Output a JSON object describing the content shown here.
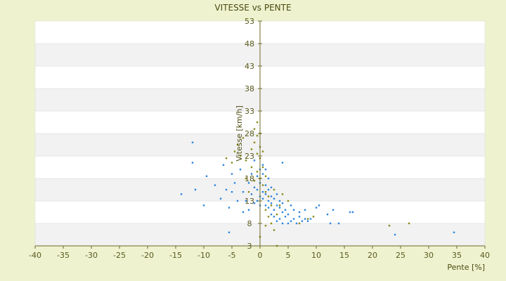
{
  "chart_data": {
    "type": "scatter",
    "title": "VITESSE vs PENTE",
    "xlabel": "Pente [%]",
    "ylabel": "Vitesse [km/h]",
    "xlim": [
      -40,
      40
    ],
    "ylim": [
      3,
      53
    ],
    "xticks": [
      -40,
      -35,
      -30,
      -25,
      -20,
      -15,
      -10,
      -5,
      0,
      5,
      10,
      15,
      20,
      25,
      30,
      35,
      40
    ],
    "yticks": [
      3,
      8,
      13,
      18,
      23,
      28,
      33,
      38,
      43,
      48,
      53
    ],
    "grid": "horizontal alternating bands",
    "colors": {
      "background": "#eef2cf",
      "plot_band_light": "#ffffff",
      "plot_band_dark": "#f2f2f2",
      "axis": "#6b6b2a",
      "text": "#5a5a1e"
    },
    "series": [
      {
        "color": "#2e86de",
        "points": [
          [
            -14,
            14.5
          ],
          [
            -12,
            26
          ],
          [
            -12,
            21.5
          ],
          [
            -11.5,
            15.5
          ],
          [
            -10,
            12
          ],
          [
            -9.5,
            18.5
          ],
          [
            -8,
            16.5
          ],
          [
            -7,
            13.5
          ],
          [
            -6.5,
            21
          ],
          [
            -6,
            15.5
          ],
          [
            -5.5,
            6
          ],
          [
            -5.5,
            11.5
          ],
          [
            -5,
            15
          ],
          [
            -5,
            19
          ],
          [
            -4.5,
            17
          ],
          [
            -4,
            13
          ],
          [
            -3.5,
            20
          ],
          [
            -3,
            15
          ],
          [
            -3,
            10.5
          ],
          [
            -2.5,
            13
          ],
          [
            -2,
            17
          ],
          [
            -2,
            11
          ],
          [
            -1.5,
            14.5
          ],
          [
            -1.5,
            19
          ],
          [
            -1,
            12.5
          ],
          [
            -1,
            16
          ],
          [
            -1,
            22
          ],
          [
            -0.5,
            13
          ],
          [
            -0.5,
            15.5
          ],
          [
            -0.5,
            18.5
          ],
          [
            0,
            12
          ],
          [
            0,
            14
          ],
          [
            0,
            17
          ],
          [
            0,
            20
          ],
          [
            0.5,
            13.5
          ],
          [
            0.5,
            15
          ],
          [
            0.5,
            19
          ],
          [
            0.5,
            21
          ],
          [
            1,
            12
          ],
          [
            1,
            14.5
          ],
          [
            1,
            16.5
          ],
          [
            1,
            20
          ],
          [
            1.5,
            11.5
          ],
          [
            1.5,
            13
          ],
          [
            1.5,
            15.5
          ],
          [
            1.5,
            18
          ],
          [
            2,
            10
          ],
          [
            2,
            12.5
          ],
          [
            2,
            14
          ],
          [
            2,
            16
          ],
          [
            2.5,
            9.5
          ],
          [
            2.5,
            11
          ],
          [
            2.5,
            13.5
          ],
          [
            3,
            8.5
          ],
          [
            3,
            12
          ],
          [
            3,
            14.5
          ],
          [
            3.5,
            9
          ],
          [
            3.5,
            11.5
          ],
          [
            3.5,
            13
          ],
          [
            4,
            8
          ],
          [
            4,
            10.5
          ],
          [
            4,
            12.5
          ],
          [
            4,
            21.5
          ],
          [
            4.5,
            9.5
          ],
          [
            4.5,
            11
          ],
          [
            5,
            8
          ],
          [
            5,
            10
          ],
          [
            5.5,
            8.5
          ],
          [
            5.5,
            12
          ],
          [
            6,
            9
          ],
          [
            6,
            11
          ],
          [
            6.5,
            8
          ],
          [
            7,
            9.5
          ],
          [
            7,
            10.5
          ],
          [
            7.5,
            8.5
          ],
          [
            8,
            9
          ],
          [
            8,
            11
          ],
          [
            8.5,
            8.5
          ],
          [
            9,
            9
          ],
          [
            10,
            11.5
          ],
          [
            10.5,
            12
          ],
          [
            12,
            10
          ],
          [
            12.5,
            8
          ],
          [
            13,
            11
          ],
          [
            14,
            8
          ],
          [
            16,
            10.5
          ],
          [
            16.5,
            10.5
          ],
          [
            24,
            5.5
          ],
          [
            34.5,
            6
          ]
        ]
      },
      {
        "color": "#8a8a1a",
        "points": [
          [
            -6,
            22.5
          ],
          [
            -5,
            21.5
          ],
          [
            -4.5,
            24
          ],
          [
            -4,
            25.5
          ],
          [
            -3.5,
            23
          ],
          [
            -3,
            27
          ],
          [
            -2.5,
            18
          ],
          [
            -2.5,
            22
          ],
          [
            -2,
            15
          ],
          [
            -1.5,
            20.5
          ],
          [
            -1.5,
            24.5
          ],
          [
            -1,
            17.5
          ],
          [
            -1,
            26
          ],
          [
            -1,
            29
          ],
          [
            -0.5,
            19.5
          ],
          [
            -0.5,
            23.5
          ],
          [
            -0.5,
            27.5
          ],
          [
            -0.5,
            30.5
          ],
          [
            0,
            18
          ],
          [
            0,
            22.5
          ],
          [
            0,
            25
          ],
          [
            0,
            28
          ],
          [
            0,
            5
          ],
          [
            0.5,
            16.5
          ],
          [
            0.5,
            20.5
          ],
          [
            0.5,
            24
          ],
          [
            1,
            11
          ],
          [
            1,
            15
          ],
          [
            1,
            18.5
          ],
          [
            1,
            7.5
          ],
          [
            1.5,
            9.5
          ],
          [
            1.5,
            14
          ],
          [
            2,
            8
          ],
          [
            2,
            12
          ],
          [
            2.5,
            15.5
          ],
          [
            2.5,
            6.5
          ],
          [
            3,
            3
          ],
          [
            3,
            10
          ],
          [
            3.5,
            12
          ],
          [
            4,
            14.5
          ],
          [
            5,
            13
          ],
          [
            7,
            8
          ],
          [
            8.5,
            9
          ],
          [
            9.5,
            9.5
          ],
          [
            23,
            7.5
          ],
          [
            26.5,
            8
          ]
        ]
      }
    ]
  }
}
